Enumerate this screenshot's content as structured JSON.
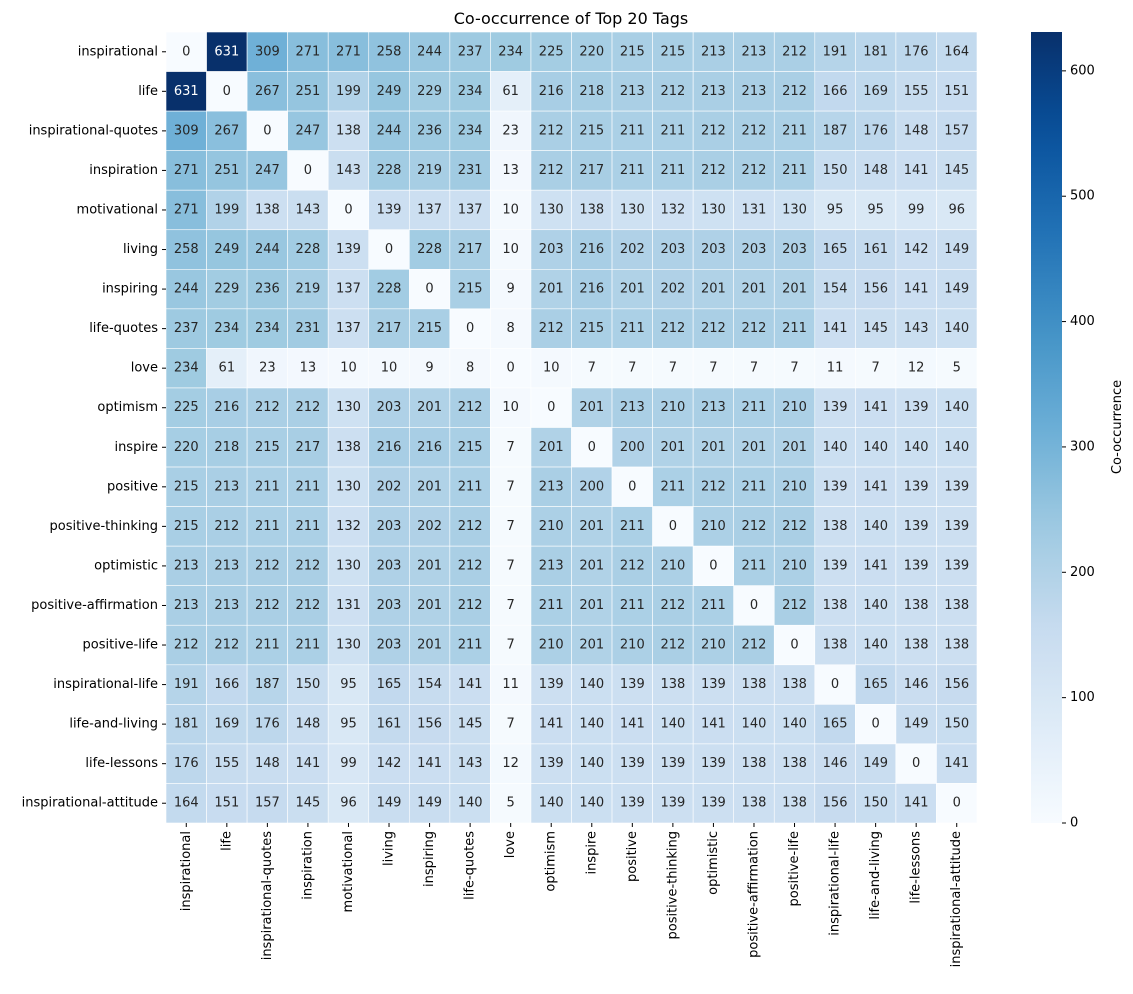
{
  "chart_data": {
    "type": "heatmap",
    "title": "Co-occurrence of Top 20 Tags",
    "xlabel": "",
    "ylabel": "",
    "colorbar_label": "Co-occurrence",
    "colorbar_ticks": [
      0,
      100,
      200,
      300,
      400,
      500,
      600
    ],
    "vmin": 0,
    "vmax": 631,
    "colormap": "Blues",
    "tags": [
      "inspirational",
      "life",
      "inspirational-quotes",
      "inspiration",
      "motivational",
      "living",
      "inspiring",
      "life-quotes",
      "love",
      "optimism",
      "inspire",
      "positive",
      "positive-thinking",
      "optimistic",
      "positive-affirmation",
      "positive-life",
      "inspirational-life",
      "life-and-living",
      "life-lessons",
      "inspirational-attitude"
    ],
    "matrix": [
      [
        0,
        631,
        309,
        271,
        271,
        258,
        244,
        237,
        234,
        225,
        220,
        215,
        215,
        213,
        213,
        212,
        191,
        181,
        176,
        164
      ],
      [
        631,
        0,
        267,
        251,
        199,
        249,
        229,
        234,
        61,
        216,
        218,
        213,
        212,
        213,
        213,
        212,
        166,
        169,
        155,
        151
      ],
      [
        309,
        267,
        0,
        247,
        138,
        244,
        236,
        234,
        23,
        212,
        215,
        211,
        211,
        212,
        212,
        211,
        187,
        176,
        148,
        157
      ],
      [
        271,
        251,
        247,
        0,
        143,
        228,
        219,
        231,
        13,
        212,
        217,
        211,
        211,
        212,
        212,
        211,
        150,
        148,
        141,
        145
      ],
      [
        271,
        199,
        138,
        143,
        0,
        139,
        137,
        137,
        10,
        130,
        138,
        130,
        132,
        130,
        131,
        130,
        95,
        95,
        99,
        96
      ],
      [
        258,
        249,
        244,
        228,
        139,
        0,
        228,
        217,
        10,
        203,
        216,
        202,
        203,
        203,
        203,
        203,
        165,
        161,
        142,
        149
      ],
      [
        244,
        229,
        236,
        219,
        137,
        228,
        0,
        215,
        9,
        201,
        216,
        201,
        202,
        201,
        201,
        201,
        154,
        156,
        141,
        149
      ],
      [
        237,
        234,
        234,
        231,
        137,
        217,
        215,
        0,
        8,
        212,
        215,
        211,
        212,
        212,
        212,
        211,
        141,
        145,
        143,
        140
      ],
      [
        234,
        61,
        23,
        13,
        10,
        10,
        9,
        8,
        0,
        10,
        7,
        7,
        7,
        7,
        7,
        7,
        11,
        7,
        12,
        5
      ],
      [
        225,
        216,
        212,
        212,
        130,
        203,
        201,
        212,
        10,
        0,
        201,
        213,
        210,
        213,
        211,
        210,
        139,
        141,
        139,
        140
      ],
      [
        220,
        218,
        215,
        217,
        138,
        216,
        216,
        215,
        7,
        201,
        0,
        200,
        201,
        201,
        201,
        201,
        140,
        140,
        140,
        140
      ],
      [
        215,
        213,
        211,
        211,
        130,
        202,
        201,
        211,
        7,
        213,
        200,
        0,
        211,
        212,
        211,
        210,
        139,
        141,
        139,
        139
      ],
      [
        215,
        212,
        211,
        211,
        132,
        203,
        202,
        212,
        7,
        210,
        201,
        211,
        0,
        210,
        212,
        212,
        138,
        140,
        139,
        139
      ],
      [
        213,
        213,
        212,
        212,
        130,
        203,
        201,
        212,
        7,
        213,
        201,
        212,
        210,
        0,
        211,
        210,
        139,
        141,
        139,
        139
      ],
      [
        213,
        213,
        212,
        212,
        131,
        203,
        201,
        212,
        7,
        211,
        201,
        211,
        212,
        211,
        0,
        212,
        138,
        140,
        138,
        138
      ],
      [
        212,
        212,
        211,
        211,
        130,
        203,
        201,
        211,
        7,
        210,
        201,
        210,
        212,
        210,
        212,
        0,
        138,
        140,
        138,
        138
      ],
      [
        191,
        166,
        187,
        150,
        95,
        165,
        154,
        141,
        11,
        139,
        140,
        139,
        138,
        139,
        138,
        138,
        0,
        165,
        146,
        156
      ],
      [
        181,
        169,
        176,
        148,
        95,
        161,
        156,
        145,
        7,
        141,
        140,
        141,
        140,
        141,
        140,
        140,
        165,
        0,
        149,
        150
      ],
      [
        176,
        155,
        148,
        141,
        99,
        142,
        141,
        143,
        12,
        139,
        140,
        139,
        139,
        139,
        138,
        138,
        146,
        149,
        0,
        141
      ],
      [
        164,
        151,
        157,
        145,
        96,
        149,
        149,
        140,
        5,
        140,
        140,
        139,
        139,
        139,
        138,
        138,
        156,
        150,
        141,
        0
      ]
    ]
  }
}
